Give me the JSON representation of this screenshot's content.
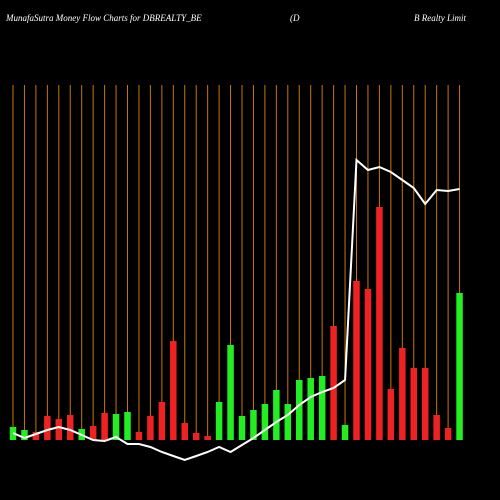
{
  "chart_data": {
    "type": "bar",
    "title": "MunafaSutra  Money Flow  Charts for DBREALTY_BE",
    "subtitle": "(D",
    "subtitle2": "B Realty Limit",
    "ylim": [
      0,
      440
    ],
    "y2lim": [
      -60,
      440
    ],
    "grid": true,
    "grid_color": "#c87800",
    "values": [
      13,
      10,
      8,
      24,
      21,
      25,
      11,
      14,
      27,
      26,
      28,
      8,
      24,
      38,
      99,
      17,
      7,
      4,
      38,
      95,
      24,
      30,
      36,
      50,
      36,
      60,
      62,
      64,
      114,
      15,
      159,
      151,
      233,
      51,
      92,
      72,
      72,
      25,
      12,
      147
    ],
    "colors": [
      "#22ee22",
      "#22ee22",
      "#ee2222",
      "#ee2222",
      "#ee2222",
      "#ee2222",
      "#22ee22",
      "#ee2222",
      "#ee2222",
      "#22ee22",
      "#22ee22",
      "#ee2222",
      "#ee2222",
      "#ee2222",
      "#ee2222",
      "#ee2222",
      "#ee2222",
      "#ee2222",
      "#22ee22",
      "#22ee22",
      "#22ee22",
      "#22ee22",
      "#22ee22",
      "#22ee22",
      "#22ee22",
      "#22ee22",
      "#22ee22",
      "#22ee22",
      "#ee2222",
      "#22ee22",
      "#ee2222",
      "#ee2222",
      "#ee2222",
      "#ee2222",
      "#ee2222",
      "#ee2222",
      "#ee2222",
      "#ee2222",
      "#ee2222",
      "#22ee22"
    ],
    "series": [
      {
        "axis": "y2",
        "color": "#ffffff",
        "values": [
          7,
          2,
          6,
          10,
          13,
          10,
          5,
          0,
          -1,
          3,
          -4,
          -4,
          -7,
          -12,
          -16,
          -20,
          -16,
          -12,
          -7,
          -12,
          -5,
          2,
          10,
          18,
          25,
          35,
          43,
          48,
          52,
          60,
          280,
          270,
          273,
          268,
          260,
          252,
          236,
          250,
          249,
          251
        ]
      }
    ]
  }
}
